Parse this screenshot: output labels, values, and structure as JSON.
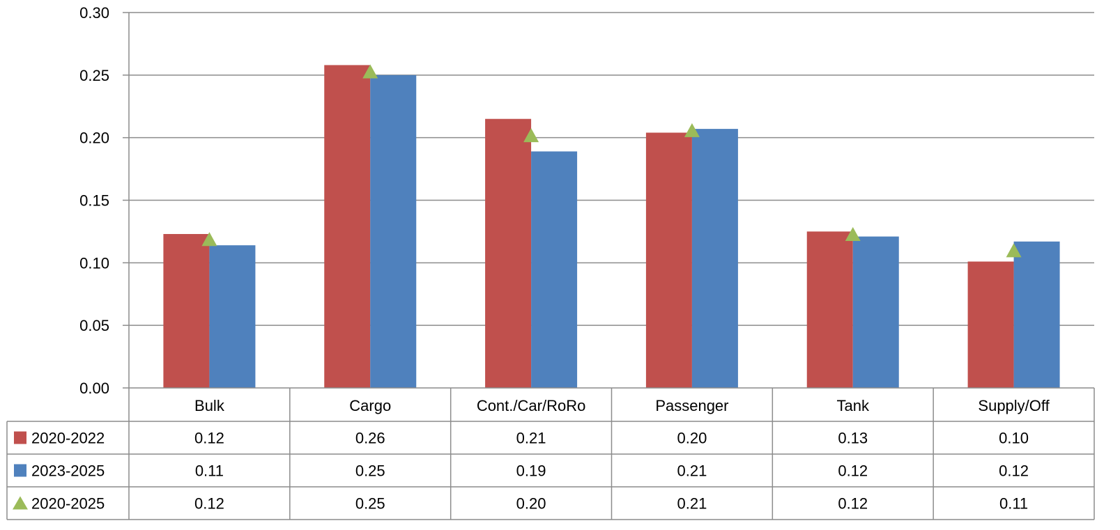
{
  "chart_data": {
    "type": "bar",
    "categories": [
      "Bulk",
      "Cargo",
      "Cont./Car/RoRo",
      "Passenger",
      "Tank",
      "Supply/Off"
    ],
    "series": [
      {
        "name": "2020-2022",
        "kind": "bar",
        "color": "#c0504d",
        "values": [
          0.123,
          0.258,
          0.215,
          0.204,
          0.125,
          0.101
        ],
        "labels": [
          "0.12",
          "0.26",
          "0.21",
          "0.20",
          "0.13",
          "0.10"
        ]
      },
      {
        "name": "2023-2025",
        "kind": "bar",
        "color": "#4f81bd",
        "values": [
          0.114,
          0.25,
          0.189,
          0.207,
          0.121,
          0.117
        ],
        "labels": [
          "0.11",
          "0.25",
          "0.19",
          "0.21",
          "0.12",
          "0.12"
        ]
      },
      {
        "name": "2020-2025",
        "kind": "marker",
        "marker": "triangle",
        "color": "#9bbb59",
        "values": [
          0.119,
          0.253,
          0.202,
          0.206,
          0.123,
          0.11
        ],
        "labels": [
          "0.12",
          "0.25",
          "0.20",
          "0.21",
          "0.12",
          "0.11"
        ]
      }
    ],
    "ylim": [
      0,
      0.3
    ],
    "yticks": [
      "0.00",
      "0.05",
      "0.10",
      "0.15",
      "0.20",
      "0.25",
      "0.30"
    ],
    "grid": true,
    "legend": "data-table"
  }
}
